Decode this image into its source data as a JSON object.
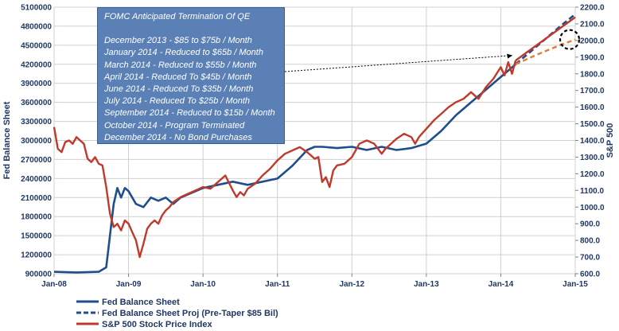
{
  "annotation": {
    "title": "FOMC Anticipated Termination Of QE",
    "lines": [
      "December 2013 - $85 to $75b / Month",
      "January 2014 - Reduced to $65b / Month",
      "March 2014 - Reduced to $55b / Month",
      "April 2014 - Reduced To $45b / Month",
      "June 2014 - Reduced To $35b / Month",
      "July 2014 - Reduced To $25b / Month",
      "September 2014 - Reduced to $15b / Month",
      "October 2014 - Program Terminated",
      "December 2014 - No Bond Purchases"
    ]
  },
  "chart_data": {
    "type": "line",
    "title": "",
    "xlabel": "",
    "ylabel": "Fed Balance Sheet",
    "ylabel_right": "S&P 500",
    "x_ticks": [
      "Jan-08",
      "Jan-09",
      "Jan-10",
      "Jan-11",
      "Jan-12",
      "Jan-13",
      "Jan-14",
      "Jan-15"
    ],
    "xlim": [
      2008.0,
      2015.0
    ],
    "y_left_ticks": [
      "5100000",
      "4800000",
      "4500000",
      "4200000",
      "3900000",
      "3600000",
      "3300000",
      "3000000",
      "2700000",
      "2400000",
      "2100000",
      "1800000",
      "1500000",
      "1200000",
      "900000"
    ],
    "ylim_left": [
      900000,
      5100000
    ],
    "y_right_ticks": [
      "2200.0",
      "2100.0",
      "2000.0",
      "1900.0",
      "1800.0",
      "1700.0",
      "1600.0",
      "1500.0",
      "1400.0",
      "1300.0",
      "1200.0",
      "1100.0",
      "1000.0",
      "900.0",
      "800.0",
      "700.0",
      "600.0"
    ],
    "ylim_right": [
      600,
      2200
    ],
    "grid": true,
    "legend_position": "bottom-left",
    "colors": {
      "balance_sheet": "#1f4e8c",
      "projection": "#1f4e8c",
      "sp500": "#c0392b",
      "sp500_trend": "#c0392b",
      "balance_trend": "#e07b39",
      "annotation_bg": "#5b80b6",
      "grid": "#d0d0d0"
    },
    "series": [
      {
        "name": "Fed Balance Sheet",
        "axis": "left",
        "style": "solid",
        "x": [
          2008.0,
          2008.3,
          2008.6,
          2008.7,
          2008.75,
          2008.8,
          2008.85,
          2008.9,
          2008.95,
          2009.0,
          2009.1,
          2009.2,
          2009.3,
          2009.4,
          2009.5,
          2009.6,
          2009.7,
          2009.8,
          2009.9,
          2010.0,
          2010.2,
          2010.4,
          2010.6,
          2010.8,
          2011.0,
          2011.2,
          2011.4,
          2011.5,
          2011.6,
          2011.8,
          2012.0,
          2012.2,
          2012.4,
          2012.6,
          2012.8,
          2013.0,
          2013.2,
          2013.4,
          2013.6,
          2013.8,
          2014.0,
          2014.2
        ],
        "y": [
          930000,
          920000,
          930000,
          1000000,
          1500000,
          2000000,
          2250000,
          2100000,
          2250000,
          2200000,
          2000000,
          1950000,
          2100000,
          2050000,
          2100000,
          2000000,
          2100000,
          2150000,
          2200000,
          2250000,
          2300000,
          2350000,
          2300000,
          2350000,
          2400000,
          2600000,
          2850000,
          2900000,
          2900000,
          2880000,
          2900000,
          2850000,
          2900000,
          2850000,
          2880000,
          2950000,
          3150000,
          3400000,
          3600000,
          3800000,
          4000000,
          4200000
        ]
      },
      {
        "name": "Fed Balance Sheet Proj (Pre-Taper $85 Bil)",
        "axis": "left",
        "style": "dashed",
        "x": [
          2014.2,
          2014.5,
          2014.8,
          2015.0
        ],
        "y": [
          4200000,
          4500000,
          4800000,
          4990000
        ]
      },
      {
        "name": "S&P 500 Stock Price Index",
        "axis": "right",
        "style": "solid",
        "x": [
          2008.0,
          2008.05,
          2008.1,
          2008.15,
          2008.2,
          2008.25,
          2008.3,
          2008.35,
          2008.4,
          2008.45,
          2008.5,
          2008.55,
          2008.6,
          2008.65,
          2008.7,
          2008.75,
          2008.8,
          2008.85,
          2008.9,
          2008.95,
          2009.0,
          2009.05,
          2009.1,
          2009.15,
          2009.2,
          2009.25,
          2009.3,
          2009.35,
          2009.4,
          2009.45,
          2009.5,
          2009.55,
          2009.6,
          2009.7,
          2009.8,
          2009.9,
          2010.0,
          2010.1,
          2010.2,
          2010.3,
          2010.4,
          2010.45,
          2010.5,
          2010.55,
          2010.6,
          2010.7,
          2010.8,
          2010.9,
          2011.0,
          2011.1,
          2011.2,
          2011.3,
          2011.4,
          2011.5,
          2011.55,
          2011.6,
          2011.65,
          2011.7,
          2011.75,
          2011.8,
          2011.9,
          2012.0,
          2012.1,
          2012.2,
          2012.3,
          2012.4,
          2012.45,
          2012.5,
          2012.6,
          2012.7,
          2012.8,
          2012.85,
          2012.9,
          2013.0,
          2013.1,
          2013.2,
          2013.3,
          2013.4,
          2013.5,
          2013.6,
          2013.7,
          2013.8,
          2013.9,
          2014.0,
          2014.05,
          2014.1,
          2014.15,
          2014.2
        ],
        "y": [
          1480,
          1350,
          1330,
          1390,
          1400,
          1380,
          1420,
          1400,
          1380,
          1290,
          1270,
          1300,
          1260,
          1250,
          1120,
          960,
          880,
          900,
          860,
          920,
          900,
          850,
          800,
          700,
          780,
          870,
          900,
          920,
          900,
          950,
          980,
          1000,
          1030,
          1060,
          1080,
          1100,
          1120,
          1110,
          1150,
          1190,
          1100,
          1060,
          1090,
          1070,
          1110,
          1140,
          1190,
          1230,
          1280,
          1320,
          1340,
          1360,
          1330,
          1290,
          1300,
          1150,
          1180,
          1120,
          1220,
          1250,
          1260,
          1300,
          1380,
          1400,
          1380,
          1320,
          1350,
          1370,
          1410,
          1440,
          1420,
          1380,
          1420,
          1470,
          1520,
          1560,
          1600,
          1630,
          1650,
          1690,
          1650,
          1720,
          1770,
          1840,
          1790,
          1870,
          1800,
          1880
        ]
      }
    ],
    "trend_sp500": {
      "x": [
        2014.2,
        2015.0
      ],
      "y": [
        1880,
        2140
      ]
    },
    "trend_balance": {
      "x": [
        2014.2,
        2014.6,
        2015.0
      ],
      "y": [
        4200000,
        4420000,
        4590000
      ]
    }
  },
  "legend": [
    {
      "label": "Fed Balance Sheet",
      "color": "#1f4e8c",
      "style": "solid"
    },
    {
      "label": "Fed Balance Sheet Proj (Pre-Taper $85 Bil)",
      "color": "#1f4e8c",
      "style": "dashed"
    },
    {
      "label": "S&P 500 Stock Price Index",
      "color": "#c0392b",
      "style": "solid"
    }
  ]
}
